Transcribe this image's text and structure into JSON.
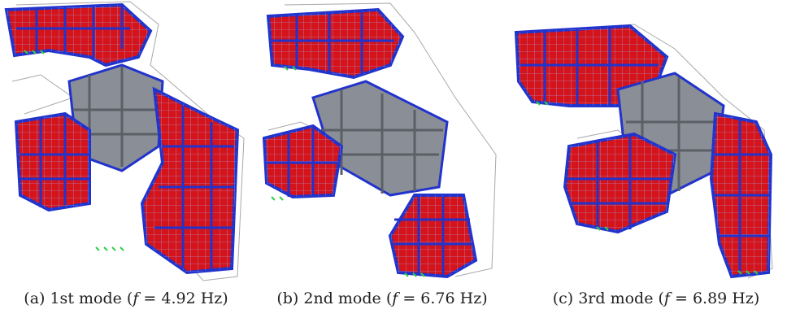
{
  "colors": {
    "frame_blue": "#2233cc",
    "wall_red": "#d4141a",
    "core_gray": "#8a8e96",
    "undeformed_gray": "#a8a8a8",
    "support_green": "#33cc44"
  },
  "panels": [
    {
      "id": "a",
      "prefix": "(a) 1st mode (",
      "var": "f",
      "value": " = 4.92 Hz)"
    },
    {
      "id": "b",
      "prefix": "(b) 2nd mode (",
      "var": "f",
      "value": " = 6.76 Hz)"
    },
    {
      "id": "c",
      "prefix": "(c) 3rd mode (",
      "var": "f",
      "value": " = 6.89 Hz)"
    }
  ]
}
